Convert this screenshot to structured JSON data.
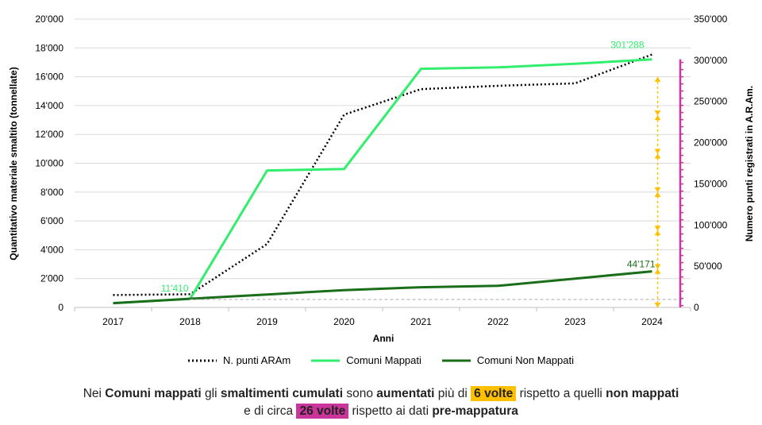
{
  "chart_data": {
    "type": "line",
    "x": [
      "2017",
      "2018",
      "2019",
      "2020",
      "2021",
      "2022",
      "2023",
      "2024"
    ],
    "xlabel": "Anni",
    "ylabel_left": "Quantitativo materiale smaltito (tonnellate)",
    "ylabel_right": "Numero punti registrati in  A.R.Am.",
    "ylim_left": [
      0,
      20000
    ],
    "ylim_right": [
      0,
      350000
    ],
    "yticks_left": [
      "0",
      "2'000",
      "4'000",
      "6'000",
      "8'000",
      "10'000",
      "12'000",
      "14'000",
      "16'000",
      "18'000",
      "20'000"
    ],
    "yticks_right": [
      "0",
      "50'000",
      "100'000",
      "150'000",
      "200'000",
      "250'000",
      "300'000",
      "350'000"
    ],
    "grid": "horizontal",
    "legend_position": "bottom",
    "series": [
      {
        "name": "N. punti ARAm",
        "axis": "right",
        "color": "#000000",
        "style": "dotted",
        "values": [
          15000,
          16000,
          77000,
          234000,
          265000,
          269000,
          272000,
          307000
        ]
      },
      {
        "name": "Comuni Mappati",
        "axis": "left",
        "color": "#33ee6e",
        "style": "solid",
        "values": [
          300,
          600,
          9500,
          9600,
          16550,
          16650,
          16900,
          17200
        ]
      },
      {
        "name": "Comuni Non Mappati",
        "axis": "left",
        "color": "#1a6e1a",
        "style": "solid",
        "values": [
          300,
          600,
          900,
          1200,
          1400,
          1500,
          2000,
          2500
        ]
      }
    ],
    "annotations": [
      {
        "text": "11'410",
        "color": "#33ee6e"
      },
      {
        "text": "301'288",
        "color": "#33ee6e"
      },
      {
        "text": "44'171",
        "color": "#1a6e1a"
      }
    ],
    "colors": {
      "yellow_arrow": "#ffc000",
      "magenta_bar": "#c9359b",
      "baseline_dash": "#aaaaaa"
    }
  },
  "caption": {
    "line1_p1": "Nei ",
    "line1_b1": "Comuni mappati",
    "line1_p2": " gli ",
    "line1_b2": "smaltimenti cumulati",
    "line1_p3": " sono ",
    "line1_b3": "aumentati",
    "line1_p4": " più di ",
    "line1_hl": "6 volte",
    "line1_p5": "  rispetto a quelli ",
    "line1_b4": "non mappati",
    "line2_p1": "e di circa ",
    "line2_hl": "26 volte",
    "line2_p2": " rispetto ai dati ",
    "line2_b1": "pre-mappatura"
  }
}
